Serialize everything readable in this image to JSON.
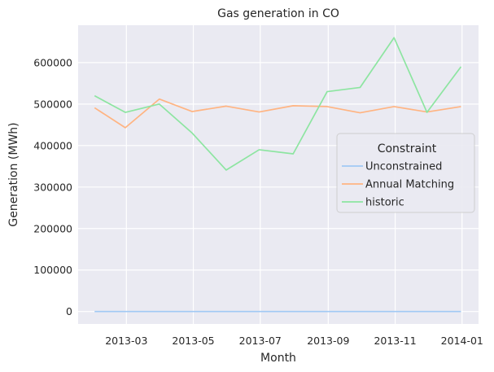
{
  "chart_data": {
    "type": "line",
    "title": "Gas generation in CO",
    "xlabel": "Month",
    "ylabel": "Generation (MWh)",
    "x": [
      "2013-01-31",
      "2013-02-28",
      "2013-03-31",
      "2013-04-30",
      "2013-05-31",
      "2013-06-30",
      "2013-07-31",
      "2013-08-31",
      "2013-09-30",
      "2013-10-31",
      "2013-11-30",
      "2013-12-31"
    ],
    "x_ticks": [
      "2013-03",
      "2013-05",
      "2013-07",
      "2013-09",
      "2013-11",
      "2014-01"
    ],
    "y_ticks": [
      0,
      100000,
      200000,
      300000,
      400000,
      500000,
      600000
    ],
    "ylim": [
      -30000,
      690000
    ],
    "xlim": [
      "2013-01-16",
      "2014-01-16"
    ],
    "grid": true,
    "legend": {
      "title": "Constraint",
      "placement": "center-right"
    },
    "series": [
      {
        "name": "Unconstrained",
        "color": "#a1c9f4",
        "values": [
          0,
          0,
          0,
          0,
          0,
          0,
          0,
          0,
          0,
          0,
          0,
          0
        ]
      },
      {
        "name": "Annual Matching",
        "color": "#ffb482",
        "values": [
          491000,
          443000,
          512000,
          482000,
          495000,
          481000,
          496000,
          494000,
          479000,
          494000,
          481000,
          494000
        ]
      },
      {
        "name": "historic",
        "color": "#8de5a1",
        "values": [
          520000,
          480000,
          500000,
          430000,
          341000,
          390000,
          380000,
          530000,
          540000,
          660000,
          480000,
          590000
        ]
      }
    ]
  }
}
